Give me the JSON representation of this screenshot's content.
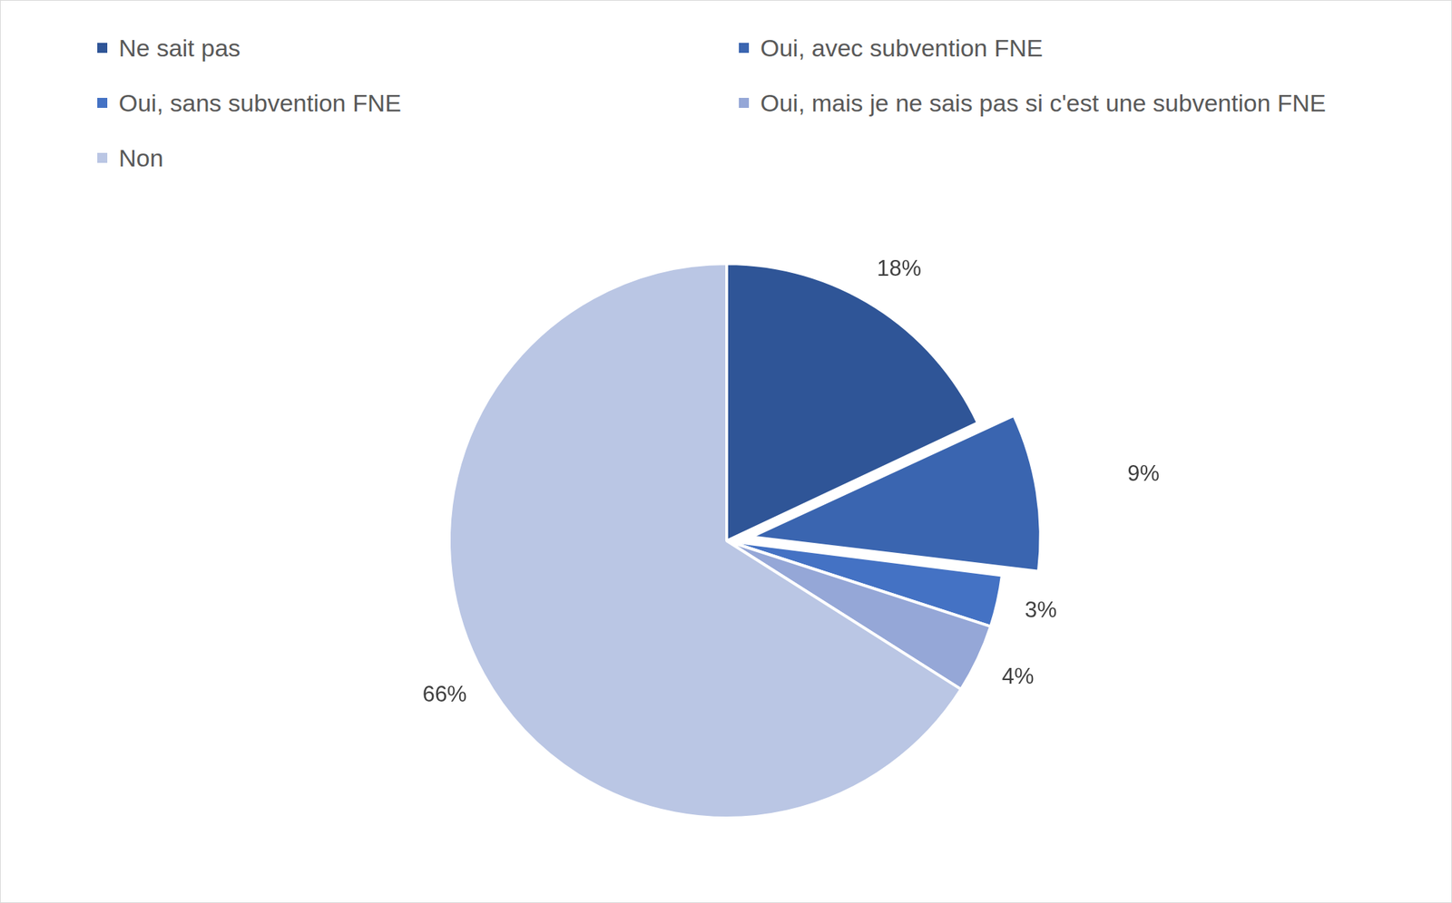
{
  "chart_data": {
    "type": "pie",
    "categories": [
      "Ne sait pas",
      "Oui, avec subvention FNE",
      "Oui, sans subvention FNE",
      "Oui, mais je ne sais pas si c'est une subvention FNE",
      "Non"
    ],
    "values": [
      18,
      9,
      3,
      4,
      66
    ],
    "value_labels": [
      "18%",
      "9%",
      "3%",
      "4%",
      "66%"
    ],
    "colors": [
      "#2f5597",
      "#3a65b0",
      "#4472c4",
      "#95a7d7",
      "#bac6e4"
    ],
    "legend": "top",
    "data_labels": true
  }
}
